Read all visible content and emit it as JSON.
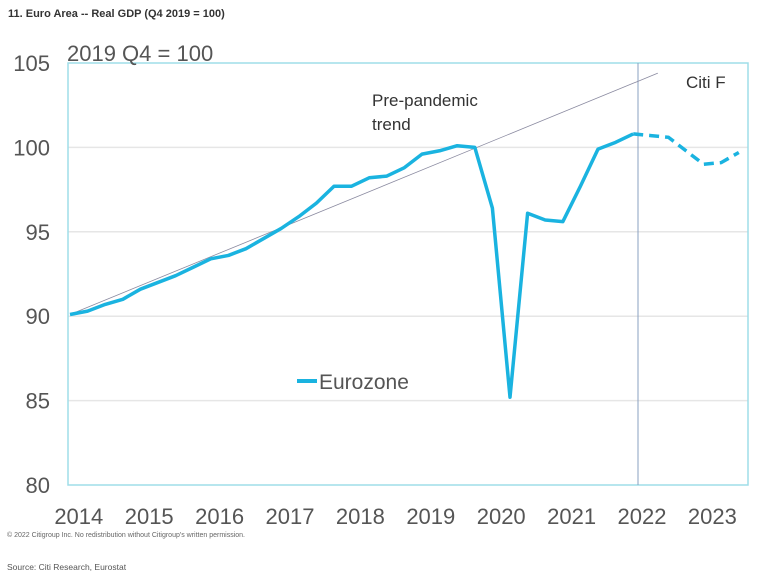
{
  "title": "11. Euro Area -- Real GDP (Q4 2019 = 100)",
  "copyright": "© 2022 Citigroup Inc. No redistribution without Citigroup's written permission.",
  "source": "Source: Citi Research, Eurostat",
  "colors": {
    "series": "#1ab3e0",
    "frame": "#9fdde9",
    "grid": "#e6e6e6",
    "trend": "#8a8aa0",
    "divider": "#8aa0c0"
  },
  "chart_data": {
    "type": "line",
    "unit_label": "2019 Q4 = 100",
    "ylim": [
      80,
      105
    ],
    "yticks": [
      "80",
      "85",
      "90",
      "95",
      "100",
      "105"
    ],
    "ytick_values": [
      80,
      85,
      90,
      95,
      100,
      105
    ],
    "xticks": [
      "2014",
      "2015",
      "2016",
      "2017",
      "2018",
      "2019",
      "2020",
      "2021",
      "2022",
      "2023"
    ],
    "grid": true,
    "forecast_start": "2022Q1",
    "annotations": {
      "trend_line1": "Pre-pandemic",
      "trend_line2": "trend",
      "forecast": "Citi F"
    },
    "legend": {
      "label": "Eurozone",
      "placement": "center-left"
    },
    "series": [
      {
        "name": "Eurozone",
        "start": "2014Q1",
        "frequency": "quarterly",
        "values": [
          90.1,
          90.3,
          90.7,
          91.0,
          91.6,
          92.0,
          92.4,
          92.9,
          93.4,
          93.6,
          94.0,
          94.6,
          95.2,
          95.9,
          96.7,
          97.7,
          97.7,
          98.2,
          98.3,
          98.8,
          99.6,
          99.8,
          100.1,
          100.0,
          96.4,
          85.2,
          96.1,
          95.7,
          95.6,
          97.7,
          99.9,
          100.3,
          100.8
        ]
      },
      {
        "name": "Citi Forecast",
        "start": "2022Q1",
        "frequency": "quarterly",
        "style": "dashed",
        "values": [
          100.8,
          100.7,
          100.6,
          99.8,
          99.0,
          99.1,
          99.7
        ]
      },
      {
        "name": "Pre-pandemic trend",
        "start": "2014Q1",
        "end_quarter_index": 33.4,
        "values": [
          90.1,
          104.4
        ]
      }
    ]
  }
}
